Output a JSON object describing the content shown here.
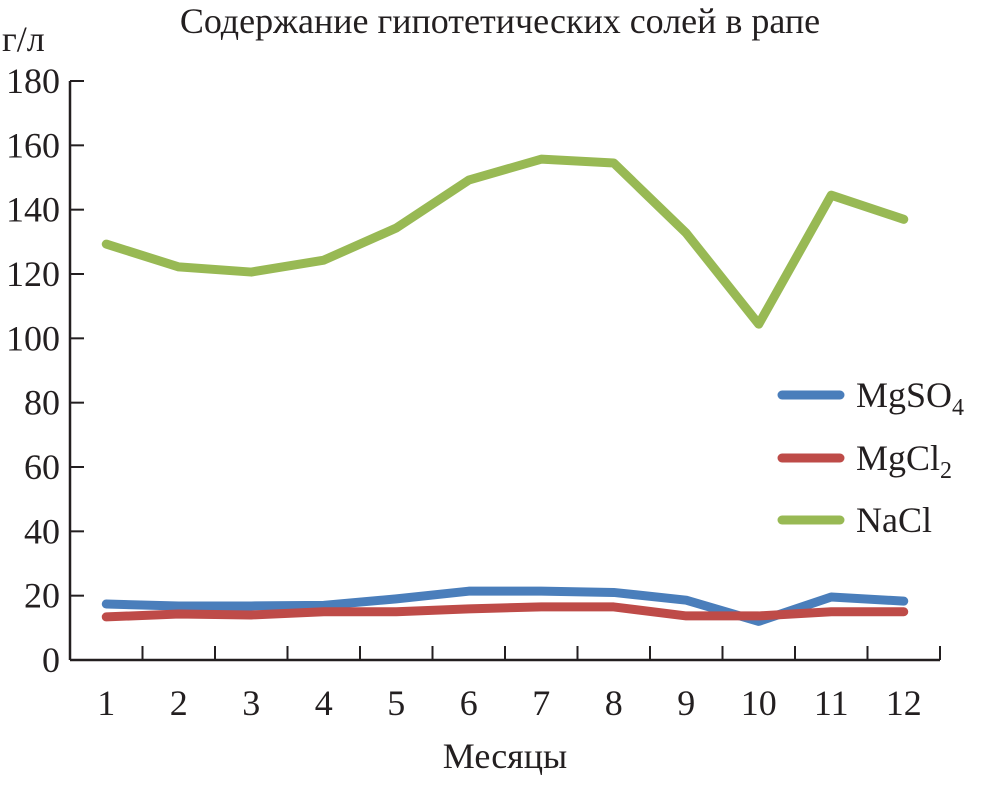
{
  "chart_data": {
    "type": "line",
    "title": "Содержание гипотетических солей в рапе",
    "ylabel": "г/л",
    "xlabel": "Месяцы",
    "categories": [
      "1",
      "2",
      "3",
      "4",
      "5",
      "6",
      "7",
      "8",
      "9",
      "10",
      "11",
      "12"
    ],
    "ylim": [
      0,
      180
    ],
    "yticks": [
      "0",
      "20",
      "40",
      "60",
      "80",
      "100",
      "120",
      "140",
      "160",
      "180"
    ],
    "grid": false,
    "legend": "right",
    "series": [
      {
        "name": "MgSO",
        "subscript": "4",
        "color": "#4a7ebb",
        "values": [
          17.4,
          16.8,
          16.8,
          17.0,
          19.0,
          21.4,
          21.4,
          21.0,
          18.6,
          12.0,
          19.6,
          18.3
        ]
      },
      {
        "name": "MgCl",
        "subscript": "2",
        "color": "#be4b48",
        "values": [
          13.4,
          14.3,
          14.0,
          15.0,
          15.0,
          15.9,
          16.5,
          16.5,
          13.7,
          13.7,
          15.0,
          15.0
        ]
      },
      {
        "name": "NaCl",
        "subscript": "",
        "color": "#98b954",
        "values": [
          129.3,
          122.2,
          120.6,
          124.3,
          134.3,
          149.2,
          155.7,
          154.5,
          132.7,
          104.4,
          144.5,
          137.0
        ]
      }
    ]
  }
}
